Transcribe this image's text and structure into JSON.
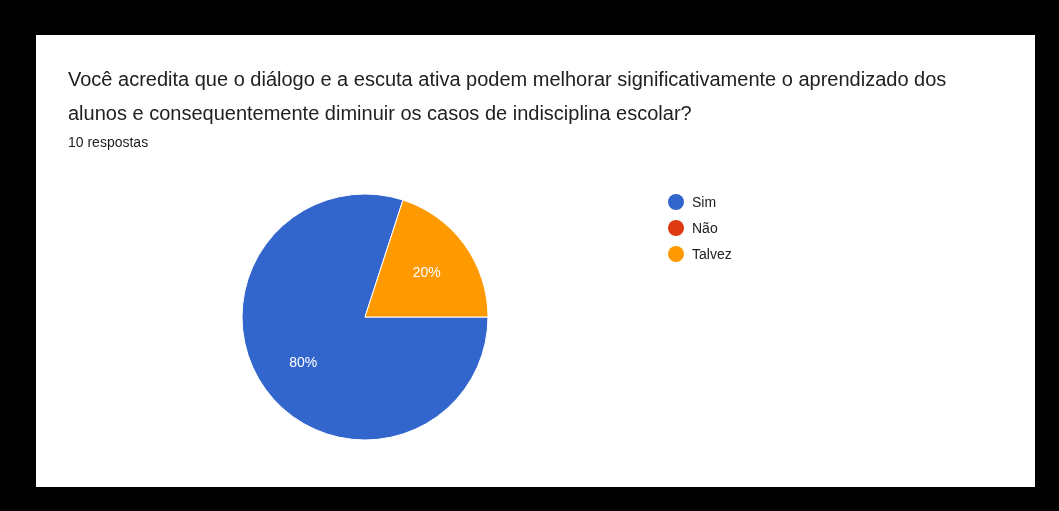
{
  "chart_data": {
    "type": "pie",
    "title": "Você acredita que o diálogo e a escuta ativa podem melhorar significativamente o aprendizado dos alunos e consequentemente diminuir os casos de indisciplina escolar?",
    "subtitle": "10 respostas",
    "categories": [
      "Sim",
      "Não",
      "Talvez"
    ],
    "values": [
      80,
      0,
      20
    ],
    "value_labels": [
      "80%",
      null,
      "20%"
    ],
    "colors": [
      "#3366cc",
      "#dc3912",
      "#ff9900"
    ],
    "legend": "right"
  }
}
